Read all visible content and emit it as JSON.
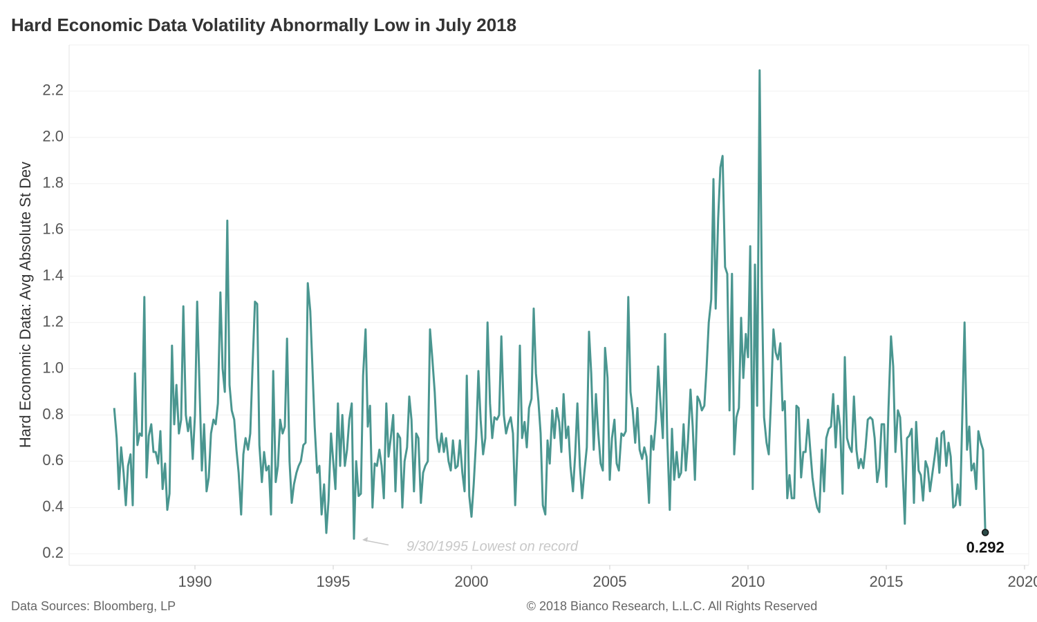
{
  "chart_data": {
    "type": "line",
    "title": "Hard Economic Data Volatility Abnormally Low in July 2018",
    "y_label": "Hard Economic Data: Avg Absolute St Dev",
    "annotation": "9/30/1995 Lowest on record",
    "source": "Data Sources: Bloomberg, LP",
    "copyright": "© 2018 Bianco Research, L.L.C. All Rights Reserved",
    "color": "#4a9690",
    "grid": true,
    "xlim": [
      1985.45,
      2020.15
    ],
    "xticks": [
      1990,
      1995,
      2000,
      2005,
      2010,
      2015,
      2020
    ],
    "ylim": [
      0.15,
      2.4
    ],
    "yticks": [
      0.2,
      0.4,
      0.6,
      0.8,
      {
        "value": 1.0,
        "label": "1.0"
      },
      1.2,
      1.4,
      1.6,
      1.8,
      {
        "value": 2.0,
        "label": "2.0"
      },
      2.2
    ],
    "x": [
      1987.08,
      1987.17,
      1987.25,
      1987.33,
      1987.42,
      1987.5,
      1987.58,
      1987.67,
      1987.75,
      1987.83,
      1987.92,
      1988,
      1988.08,
      1988.17,
      1988.25,
      1988.33,
      1988.42,
      1988.5,
      1988.58,
      1988.67,
      1988.75,
      1988.83,
      1988.92,
      1989,
      1989.08,
      1989.17,
      1989.25,
      1989.33,
      1989.42,
      1989.5,
      1989.58,
      1989.67,
      1989.75,
      1989.83,
      1989.92,
      1990,
      1990.08,
      1990.17,
      1990.25,
      1990.33,
      1990.42,
      1990.5,
      1990.58,
      1990.67,
      1990.75,
      1990.83,
      1990.92,
      1991,
      1991.08,
      1991.17,
      1991.25,
      1991.33,
      1991.42,
      1991.5,
      1991.58,
      1991.67,
      1991.75,
      1991.83,
      1991.92,
      1992,
      1992.08,
      1992.17,
      1992.25,
      1992.33,
      1992.42,
      1992.5,
      1992.58,
      1992.67,
      1992.75,
      1992.83,
      1992.92,
      1993,
      1993.08,
      1993.17,
      1993.25,
      1993.33,
      1993.42,
      1993.5,
      1993.58,
      1993.67,
      1993.75,
      1993.83,
      1993.92,
      1994,
      1994.08,
      1994.17,
      1994.25,
      1994.33,
      1994.42,
      1994.5,
      1994.58,
      1994.67,
      1994.75,
      1994.83,
      1994.92,
      1995,
      1995.08,
      1995.17,
      1995.25,
      1995.33,
      1995.42,
      1995.5,
      1995.58,
      1995.67,
      1995.75,
      1995.83,
      1995.92,
      1996,
      1996.08,
      1996.17,
      1996.25,
      1996.33,
      1996.42,
      1996.5,
      1996.58,
      1996.67,
      1996.75,
      1996.83,
      1996.92,
      1997,
      1997.08,
      1997.17,
      1997.25,
      1997.33,
      1997.42,
      1997.5,
      1997.58,
      1997.67,
      1997.75,
      1997.83,
      1997.92,
      1998,
      1998.08,
      1998.17,
      1998.25,
      1998.33,
      1998.42,
      1998.5,
      1998.58,
      1998.67,
      1998.75,
      1998.83,
      1998.92,
      1999,
      1999.08,
      1999.17,
      1999.25,
      1999.33,
      1999.42,
      1999.5,
      1999.58,
      1999.67,
      1999.75,
      1999.83,
      1999.92,
      2000,
      2000.08,
      2000.17,
      2000.25,
      2000.33,
      2000.42,
      2000.5,
      2000.58,
      2000.67,
      2000.75,
      2000.83,
      2000.92,
      2001,
      2001.08,
      2001.17,
      2001.25,
      2001.33,
      2001.42,
      2001.5,
      2001.58,
      2001.67,
      2001.75,
      2001.83,
      2001.92,
      2002,
      2002.08,
      2002.17,
      2002.25,
      2002.33,
      2002.42,
      2002.5,
      2002.58,
      2002.67,
      2002.75,
      2002.83,
      2002.92,
      2003,
      2003.08,
      2003.17,
      2003.25,
      2003.33,
      2003.42,
      2003.5,
      2003.58,
      2003.67,
      2003.75,
      2003.83,
      2003.92,
      2004,
      2004.08,
      2004.17,
      2004.25,
      2004.33,
      2004.42,
      2004.5,
      2004.58,
      2004.67,
      2004.75,
      2004.83,
      2004.92,
      2005,
      2005.08,
      2005.17,
      2005.25,
      2005.33,
      2005.42,
      2005.5,
      2005.58,
      2005.67,
      2005.75,
      2005.83,
      2005.92,
      2006,
      2006.08,
      2006.17,
      2006.25,
      2006.33,
      2006.42,
      2006.5,
      2006.58,
      2006.67,
      2006.75,
      2006.83,
      2006.92,
      2007,
      2007.08,
      2007.17,
      2007.25,
      2007.33,
      2007.42,
      2007.5,
      2007.58,
      2007.67,
      2007.75,
      2007.83,
      2007.92,
      2008,
      2008.08,
      2008.17,
      2008.25,
      2008.33,
      2008.42,
      2008.5,
      2008.58,
      2008.67,
      2008.75,
      2008.83,
      2008.92,
      2009,
      2009.08,
      2009.17,
      2009.25,
      2009.33,
      2009.42,
      2009.5,
      2009.58,
      2009.67,
      2009.75,
      2009.83,
      2009.92,
      2010,
      2010.08,
      2010.17,
      2010.25,
      2010.33,
      2010.42,
      2010.5,
      2010.58,
      2010.67,
      2010.75,
      2010.83,
      2010.92,
      2011,
      2011.08,
      2011.17,
      2011.25,
      2011.33,
      2011.42,
      2011.5,
      2011.58,
      2011.67,
      2011.75,
      2011.83,
      2011.92,
      2012,
      2012.08,
      2012.17,
      2012.25,
      2012.33,
      2012.42,
      2012.5,
      2012.58,
      2012.67,
      2012.75,
      2012.83,
      2012.92,
      2013,
      2013.08,
      2013.17,
      2013.25,
      2013.33,
      2013.42,
      2013.5,
      2013.58,
      2013.67,
      2013.75,
      2013.83,
      2013.92,
      2014,
      2014.08,
      2014.17,
      2014.25,
      2014.33,
      2014.42,
      2014.5,
      2014.58,
      2014.67,
      2014.75,
      2014.83,
      2014.92,
      2015,
      2015.08,
      2015.17,
      2015.25,
      2015.33,
      2015.42,
      2015.5,
      2015.58,
      2015.67,
      2015.75,
      2015.83,
      2015.92,
      2016,
      2016.08,
      2016.17,
      2016.25,
      2016.33,
      2016.42,
      2016.5,
      2016.58,
      2016.67,
      2016.75,
      2016.83,
      2016.92,
      2017,
      2017.08,
      2017.17,
      2017.25,
      2017.33,
      2017.42,
      2017.5,
      2017.58,
      2017.67,
      2017.75,
      2017.83,
      2017.92,
      2018,
      2018.08,
      2018.17,
      2018.25,
      2018.33,
      2018.42,
      2018.5,
      2018.58
    ],
    "values": [
      0.83,
      0.7,
      0.48,
      0.66,
      0.55,
      0.41,
      0.58,
      0.63,
      0.41,
      0.98,
      0.67,
      0.72,
      0.71,
      1.31,
      0.53,
      0.71,
      0.76,
      0.64,
      0.64,
      0.59,
      0.73,
      0.48,
      0.59,
      0.39,
      0.46,
      1.1,
      0.76,
      0.93,
      0.72,
      0.78,
      1.27,
      0.8,
      0.73,
      0.79,
      0.61,
      0.8,
      1.29,
      0.9,
      0.56,
      0.76,
      0.47,
      0.53,
      0.72,
      0.78,
      0.76,
      0.85,
      1.33,
      1.0,
      0.9,
      1.64,
      0.93,
      0.82,
      0.78,
      0.65,
      0.55,
      0.37,
      0.63,
      0.7,
      0.65,
      0.72,
      1.0,
      1.29,
      1.28,
      0.67,
      0.51,
      0.64,
      0.56,
      0.58,
      0.37,
      0.99,
      0.51,
      0.58,
      0.78,
      0.72,
      0.75,
      1.13,
      0.6,
      0.42,
      0.5,
      0.55,
      0.58,
      0.6,
      0.67,
      0.68,
      1.37,
      1.25,
      1.0,
      0.75,
      0.55,
      0.58,
      0.37,
      0.5,
      0.29,
      0.43,
      0.72,
      0.6,
      0.48,
      0.85,
      0.58,
      0.8,
      0.58,
      0.65,
      0.78,
      0.85,
      0.265,
      0.6,
      0.45,
      0.46,
      0.97,
      1.17,
      0.75,
      0.84,
      0.4,
      0.59,
      0.58,
      0.65,
      0.58,
      0.44,
      0.85,
      0.62,
      0.7,
      0.8,
      0.47,
      0.72,
      0.7,
      0.4,
      0.6,
      0.66,
      0.88,
      0.78,
      0.47,
      0.72,
      0.7,
      0.42,
      0.55,
      0.58,
      0.6,
      1.17,
      1.05,
      0.9,
      0.7,
      0.64,
      0.72,
      0.64,
      0.7,
      0.6,
      0.56,
      0.69,
      0.57,
      0.58,
      0.69,
      0.55,
      0.47,
      0.97,
      0.45,
      0.36,
      0.5,
      0.7,
      0.99,
      0.78,
      0.63,
      0.7,
      1.2,
      0.85,
      0.7,
      0.79,
      0.78,
      0.8,
      1.14,
      0.8,
      0.72,
      0.76,
      0.79,
      0.72,
      0.41,
      0.69,
      1.1,
      0.7,
      0.77,
      0.66,
      0.83,
      0.87,
      1.26,
      0.98,
      0.86,
      0.72,
      0.41,
      0.37,
      0.69,
      0.59,
      0.82,
      0.7,
      0.83,
      0.77,
      0.64,
      0.89,
      0.7,
      0.75,
      0.58,
      0.47,
      0.63,
      0.85,
      0.58,
      0.44,
      0.55,
      0.66,
      1.16,
      0.98,
      0.65,
      0.89,
      0.73,
      0.59,
      0.56,
      1.09,
      0.96,
      0.52,
      0.7,
      0.78,
      0.59,
      0.56,
      0.72,
      0.71,
      0.73,
      1.31,
      0.9,
      0.82,
      0.68,
      0.83,
      0.65,
      0.61,
      0.66,
      0.62,
      0.42,
      0.71,
      0.65,
      0.78,
      1.01,
      0.86,
      0.7,
      1.15,
      0.7,
      0.39,
      0.74,
      0.52,
      0.64,
      0.53,
      0.55,
      0.76,
      0.56,
      0.69,
      0.91,
      0.75,
      0.52,
      0.88,
      0.86,
      0.82,
      0.84,
      1.0,
      1.2,
      1.3,
      1.82,
      1.26,
      1.65,
      1.87,
      1.92,
      1.44,
      1.41,
      0.82,
      1.41,
      0.63,
      0.79,
      0.83,
      1.22,
      0.96,
      1.15,
      1.05,
      1.53,
      0.48,
      1.45,
      0.84,
      2.29,
      1.35,
      0.79,
      0.68,
      0.63,
      0.86,
      1.17,
      1.07,
      1.04,
      1.11,
      0.82,
      0.86,
      0.44,
      0.54,
      0.44,
      0.44,
      0.84,
      0.83,
      0.53,
      0.64,
      0.64,
      0.78,
      0.65,
      0.53,
      0.45,
      0.4,
      0.38,
      0.65,
      0.47,
      0.7,
      0.74,
      0.75,
      0.89,
      0.66,
      0.84,
      0.75,
      0.46,
      1.05,
      0.7,
      0.66,
      0.64,
      0.88,
      0.65,
      0.57,
      0.61,
      0.57,
      0.66,
      0.78,
      0.79,
      0.78,
      0.7,
      0.51,
      0.57,
      0.76,
      0.76,
      0.49,
      0.83,
      1.14,
      1.01,
      0.64,
      0.82,
      0.79,
      0.59,
      0.33,
      0.7,
      0.71,
      0.74,
      0.42,
      0.77,
      0.56,
      0.54,
      0.43,
      0.6,
      0.57,
      0.47,
      0.55,
      0.62,
      0.7,
      0.55,
      0.72,
      0.73,
      0.58,
      0.68,
      0.62,
      0.4,
      0.41,
      0.5,
      0.41,
      0.8,
      1.2,
      0.65,
      0.75,
      0.56,
      0.59,
      0.48,
      0.73,
      0.68,
      0.65,
      0.292
    ]
  }
}
